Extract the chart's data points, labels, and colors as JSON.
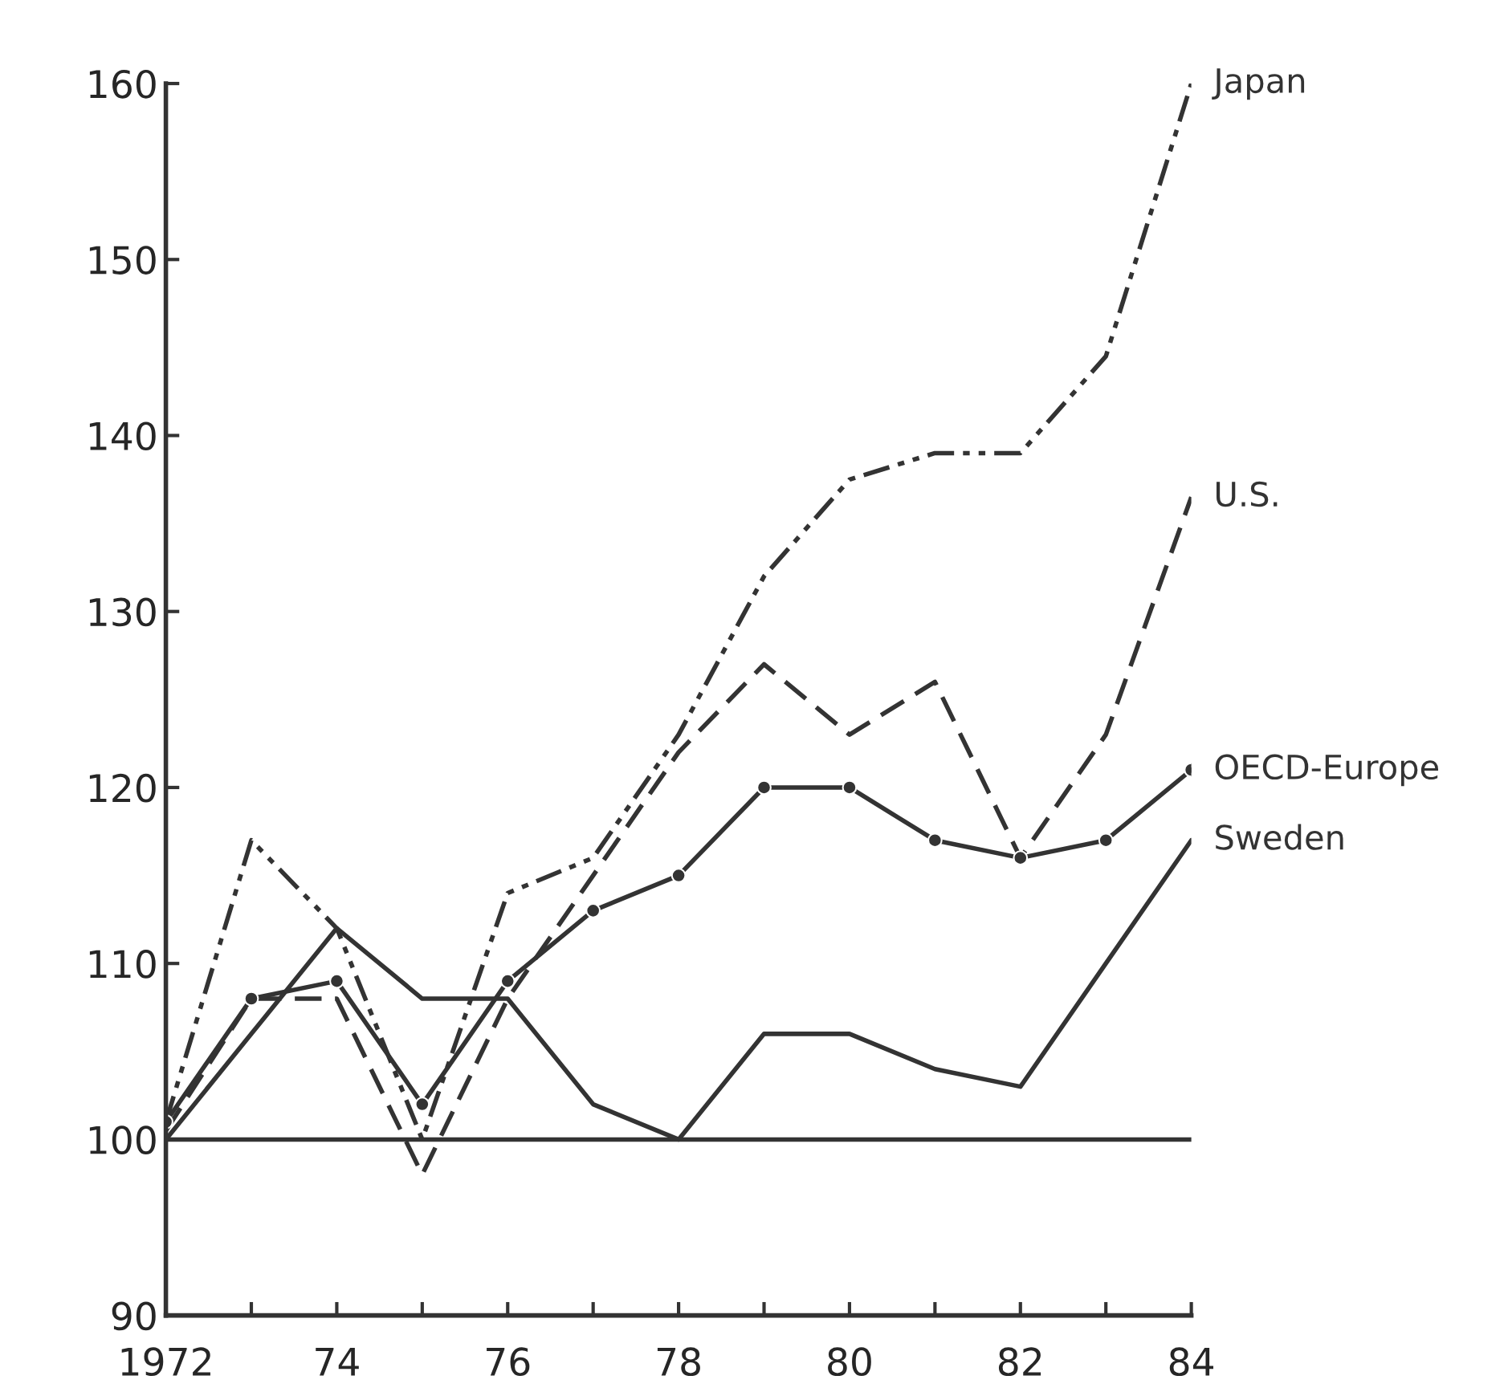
{
  "chart_data": {
    "type": "line",
    "x": [
      1972,
      1973,
      1974,
      1975,
      1976,
      1977,
      1978,
      1979,
      1980,
      1981,
      1982,
      1983,
      1984
    ],
    "series": [
      {
        "name": "Japan",
        "color": "#333333",
        "line_style": "dotted",
        "marker": "none",
        "values": [
          101,
          117,
          112,
          100,
          114,
          116,
          123,
          132,
          137.5,
          139,
          139,
          144.5,
          160
        ]
      },
      {
        "name": "U.S.",
        "color": "#333333",
        "line_style": "dashed",
        "marker": "none",
        "values": [
          100.5,
          108,
          108,
          98,
          108,
          115,
          122,
          127,
          123,
          126,
          116,
          123,
          136.5
        ]
      },
      {
        "name": "OECD-Europe",
        "color": "#333333",
        "line_style": "solid",
        "marker": "circle",
        "values": [
          101,
          108,
          109,
          102,
          109,
          113,
          115,
          120,
          120,
          117,
          116,
          117,
          121
        ]
      },
      {
        "name": "Sweden",
        "color": "#333333",
        "line_style": "solid",
        "marker": "none",
        "values": [
          100,
          106,
          112,
          108,
          108,
          102,
          100,
          106,
          106,
          104,
          103,
          110,
          117
        ]
      }
    ],
    "ref_lines": [
      {
        "axis": "y",
        "value": 100,
        "color": "#333333",
        "line_style": "solid"
      }
    ],
    "xlim": [
      1972,
      1984
    ],
    "ylim": [
      90,
      160
    ],
    "xticks": [
      {
        "value": 1972,
        "label": "1972"
      },
      {
        "value": 1973,
        "label": null
      },
      {
        "value": 1974,
        "label": "74"
      },
      {
        "value": 1975,
        "label": null
      },
      {
        "value": 1976,
        "label": "76"
      },
      {
        "value": 1977,
        "label": null
      },
      {
        "value": 1978,
        "label": "78"
      },
      {
        "value": 1979,
        "label": null
      },
      {
        "value": 1980,
        "label": "80"
      },
      {
        "value": 1981,
        "label": null
      },
      {
        "value": 1982,
        "label": "82"
      },
      {
        "value": 1983,
        "label": null
      },
      {
        "value": 1984,
        "label": "84"
      }
    ],
    "yticks": [
      90,
      100,
      110,
      120,
      130,
      140,
      150,
      160
    ],
    "grid": false,
    "legend": false
  }
}
